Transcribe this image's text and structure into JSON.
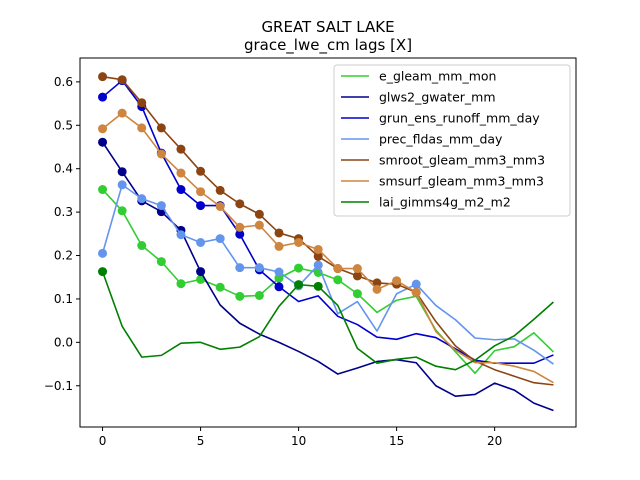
{
  "chart_data": {
    "type": "line",
    "title": "GREAT SALT LAKE",
    "subtitle": "grace_lwe_cm lags [X]",
    "xlabel": "",
    "ylabel": "",
    "xlim": [
      -1.15,
      24.15
    ],
    "ylim": [
      -0.195,
      0.655
    ],
    "xticks": [
      0,
      5,
      10,
      15,
      20
    ],
    "yticks": [
      -0.1,
      0.0,
      0.1,
      0.2,
      0.3,
      0.4,
      0.5,
      0.6
    ],
    "ytick_labels": [
      "−0.1",
      "0.0",
      "0.1",
      "0.2",
      "0.3",
      "0.4",
      "0.5",
      "0.6"
    ],
    "grid": false,
    "legend_position": "upper right",
    "x": [
      0,
      1,
      2,
      3,
      4,
      5,
      6,
      7,
      8,
      9,
      10,
      11,
      12,
      13,
      14,
      15,
      16,
      17,
      18,
      19,
      20,
      21,
      22,
      23
    ],
    "series": [
      {
        "name": "e_gleam_mm_mon",
        "color": "#32cd32",
        "values": [
          0.352,
          0.303,
          0.223,
          0.186,
          0.135,
          0.145,
          0.127,
          0.106,
          0.108,
          0.148,
          0.171,
          0.161,
          0.144,
          0.112,
          0.069,
          0.097,
          0.106,
          0.028,
          -0.022,
          -0.071,
          -0.019,
          -0.01,
          0.022,
          -0.022
        ],
        "markers": [
          0,
          1,
          2,
          3,
          4,
          5,
          6,
          7,
          8,
          9,
          10,
          11,
          12,
          13
        ]
      },
      {
        "name": "glws2_gwater_mm",
        "color": "#00008b",
        "values": [
          0.461,
          0.393,
          0.326,
          0.301,
          0.258,
          0.163,
          0.086,
          0.044,
          0.019,
          0.0,
          -0.021,
          -0.044,
          -0.073,
          -0.059,
          -0.044,
          -0.04,
          -0.047,
          -0.1,
          -0.124,
          -0.12,
          -0.094,
          -0.11,
          -0.14,
          -0.157
        ],
        "markers": [
          0,
          1,
          2,
          3,
          4,
          5
        ]
      },
      {
        "name": "grun_ens_runoff_mm_day",
        "color": "#0000cd",
        "values": [
          0.565,
          0.603,
          0.543,
          0.436,
          0.352,
          0.315,
          0.315,
          0.249,
          0.167,
          0.128,
          0.094,
          0.107,
          0.06,
          0.041,
          0.012,
          0.007,
          0.02,
          0.011,
          -0.015,
          -0.041,
          -0.048,
          -0.048,
          -0.048,
          -0.029
        ],
        "markers": [
          0,
          1,
          2,
          3,
          4,
          5,
          6,
          7,
          8,
          9
        ]
      },
      {
        "name": "prec_fldas_mm_day",
        "color": "#6495ed",
        "values": [
          0.205,
          0.363,
          0.331,
          0.315,
          0.248,
          0.23,
          0.239,
          0.172,
          0.172,
          0.162,
          0.13,
          0.178,
          0.066,
          0.094,
          0.026,
          0.112,
          0.134,
          0.085,
          0.052,
          0.01,
          0.006,
          0.008,
          -0.018,
          -0.05
        ],
        "markers": [
          0,
          1,
          2,
          3,
          4,
          5,
          6,
          7,
          8,
          9,
          10,
          11,
          16
        ]
      },
      {
        "name": "smroot_gleam_mm3_mm3",
        "color": "#8b4513",
        "values": [
          0.612,
          0.605,
          0.552,
          0.494,
          0.445,
          0.394,
          0.35,
          0.319,
          0.295,
          0.252,
          0.239,
          0.198,
          0.17,
          0.153,
          0.137,
          0.134,
          0.115,
          0.048,
          -0.008,
          -0.043,
          -0.063,
          -0.078,
          -0.093,
          -0.098
        ],
        "markers": [
          0,
          1,
          2,
          3,
          4,
          5,
          6,
          7,
          8,
          9,
          10,
          11,
          12,
          13,
          14,
          15,
          16
        ]
      },
      {
        "name": "smsurf_gleam_mm3_mm3",
        "color": "#cd853f",
        "values": [
          0.492,
          0.528,
          0.494,
          0.434,
          0.39,
          0.347,
          0.313,
          0.265,
          0.27,
          0.221,
          0.23,
          0.214,
          0.17,
          0.17,
          0.122,
          0.142,
          0.115,
          0.025,
          -0.018,
          -0.047,
          -0.047,
          -0.055,
          -0.067,
          -0.093
        ],
        "markers": [
          0,
          1,
          2,
          3,
          4,
          5,
          6,
          7,
          8,
          9,
          10,
          11,
          12,
          13,
          14,
          15,
          16
        ]
      },
      {
        "name": "lai_gimms4g_m2_m2",
        "color": "#008000",
        "values": [
          0.163,
          0.037,
          -0.034,
          -0.03,
          -0.002,
          0.0,
          -0.016,
          -0.011,
          0.013,
          0.083,
          0.133,
          0.129,
          0.085,
          -0.014,
          -0.048,
          -0.039,
          -0.034,
          -0.055,
          -0.063,
          -0.041,
          -0.008,
          0.015,
          0.053,
          0.093
        ],
        "markers": [
          0,
          10,
          11
        ]
      }
    ]
  }
}
